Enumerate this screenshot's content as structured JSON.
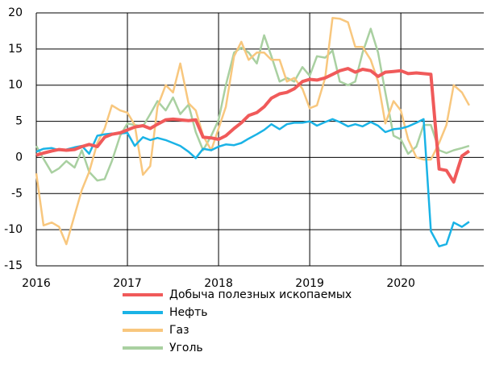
{
  "chart_data": {
    "type": "line",
    "x": [
      2016,
      2016.08,
      2016.17,
      2016.25,
      2016.33,
      2016.42,
      2016.5,
      2016.58,
      2016.67,
      2016.75,
      2016.83,
      2016.92,
      2017,
      2017.08,
      2017.17,
      2017.25,
      2017.33,
      2017.42,
      2017.5,
      2017.58,
      2017.67,
      2017.75,
      2017.83,
      2017.92,
      2018,
      2018.08,
      2018.17,
      2018.25,
      2018.33,
      2018.42,
      2018.5,
      2018.58,
      2018.67,
      2018.75,
      2018.83,
      2018.92,
      2019,
      2019.08,
      2019.17,
      2019.25,
      2019.33,
      2019.42,
      2019.5,
      2019.58,
      2019.67,
      2019.75,
      2019.83,
      2019.92,
      2020,
      2020.08,
      2020.17,
      2020.25,
      2020.33,
      2020.42,
      2020.5,
      2020.58,
      2020.67,
      2020.75
    ],
    "series": [
      {
        "name": "Добыча полезных ископаемых",
        "color": "#f05a5a",
        "values": [
          0.3,
          0.6,
          0.9,
          1.1,
          1.0,
          1.1,
          1.5,
          1.8,
          1.5,
          2.8,
          3.2,
          3.4,
          3.8,
          4.2,
          4.4,
          4.0,
          4.6,
          5.2,
          5.3,
          5.2,
          5.1,
          5.2,
          2.8,
          2.7,
          2.5,
          3.0,
          4.0,
          4.8,
          5.8,
          6.2,
          7.0,
          8.2,
          8.8,
          9.0,
          9.5,
          10.5,
          10.8,
          10.7,
          11.0,
          11.5,
          12.0,
          12.3,
          11.8,
          12.2,
          12.0,
          11.2,
          11.8,
          11.9,
          12.0,
          11.6,
          11.7,
          11.6,
          11.5,
          -1.6,
          -1.8,
          -3.4,
          0.2,
          0.9
        ]
      },
      {
        "name": "Нефть",
        "color": "#1ab3e6",
        "values": [
          0.8,
          1.2,
          1.3,
          1.0,
          1.1,
          1.4,
          1.6,
          0.5,
          3.0,
          3.2,
          3.3,
          3.3,
          3.4,
          1.6,
          2.8,
          2.4,
          2.7,
          2.4,
          2.0,
          1.6,
          0.8,
          -0.1,
          1.2,
          1.0,
          1.5,
          1.8,
          1.7,
          2.0,
          2.6,
          3.2,
          3.8,
          4.6,
          3.9,
          4.6,
          4.8,
          4.8,
          5.0,
          4.4,
          4.9,
          5.3,
          4.9,
          4.3,
          4.6,
          4.3,
          4.9,
          4.4,
          3.5,
          3.9,
          4.0,
          4.3,
          4.8,
          5.3,
          -10.2,
          -12.3,
          -12.0,
          -9.0,
          -9.6,
          -8.9
        ]
      },
      {
        "name": "Газ",
        "color": "#f8c77e",
        "values": [
          -2.2,
          -9.4,
          -9.0,
          -9.6,
          -12.0,
          -8.0,
          -4.5,
          -2.0,
          2.0,
          4.0,
          7.2,
          6.5,
          6.2,
          4.5,
          -2.4,
          -1.2,
          7.0,
          10.0,
          9.0,
          13.0,
          7.5,
          6.5,
          3.0,
          1.0,
          4.0,
          7.0,
          14.0,
          16.0,
          13.5,
          14.5,
          14.5,
          13.5,
          13.5,
          10.5,
          11.0,
          9.5,
          6.8,
          7.2,
          11.0,
          19.3,
          19.2,
          18.7,
          15.3,
          15.3,
          13.5,
          10.5,
          4.7,
          7.8,
          6.5,
          2.5,
          0.0,
          -0.3,
          -0.3,
          2.0,
          4.5,
          10.0,
          9.0,
          7.2
        ]
      },
      {
        "name": "Уголь",
        "color": "#a9d0a1",
        "values": [
          1.6,
          -0.2,
          -2.1,
          -1.5,
          -0.5,
          -1.4,
          1.0,
          -2.0,
          -3.2,
          -3.0,
          -0.5,
          3.0,
          4.7,
          4.5,
          4.3,
          6.0,
          7.8,
          6.5,
          8.3,
          6.0,
          7.3,
          3.5,
          1.0,
          3.0,
          5.2,
          10.0,
          14.5,
          15.2,
          14.5,
          13.0,
          16.9,
          14.0,
          10.5,
          11.0,
          10.5,
          12.5,
          11.3,
          14.0,
          13.8,
          14.8,
          10.5,
          10.0,
          10.5,
          14.5,
          17.8,
          14.5,
          9.0,
          3.0,
          2.5,
          0.5,
          1.5,
          4.5,
          4.5,
          1.0,
          0.6,
          1.0,
          1.3,
          1.6
        ]
      }
    ],
    "xlim": [
      2016,
      2020.91
    ],
    "xticks": [
      2016,
      2017,
      2018,
      2019,
      2020
    ],
    "ylim": [
      -15,
      20
    ],
    "yticks": [
      -15,
      -10,
      -5,
      0,
      5,
      10,
      15,
      20
    ],
    "grid": true,
    "legend": "bottom"
  }
}
